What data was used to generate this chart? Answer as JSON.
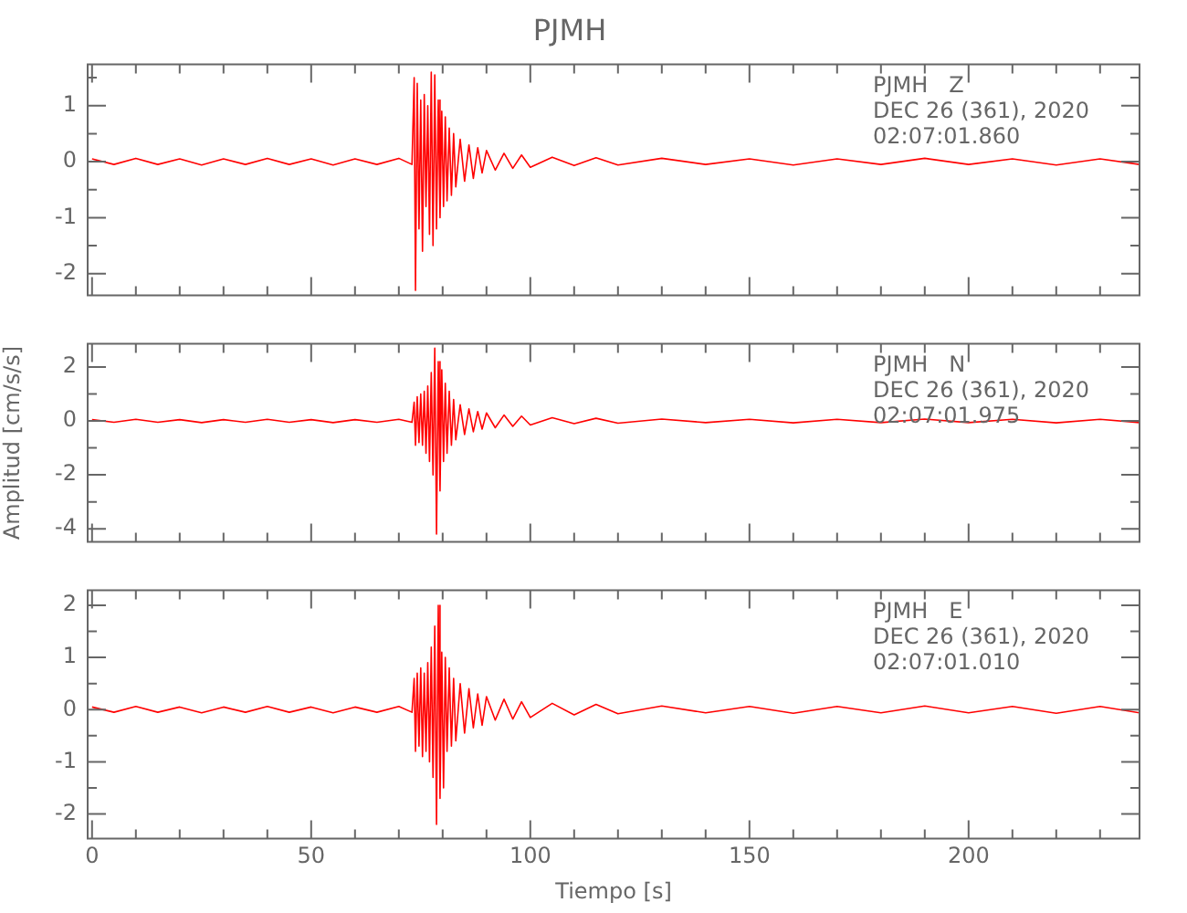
{
  "chart_data": [
    {
      "type": "line",
      "title": "PJMH",
      "tick_labels": "y",
      "annotations": [
        "PJMH   Z",
        "DEC 26 (361), 2020",
        "02:07:01.860"
      ],
      "x": [
        0,
        5,
        10,
        15,
        20,
        25,
        30,
        35,
        40,
        45,
        50,
        55,
        60,
        65,
        70,
        73,
        73.5,
        73.8,
        74.2,
        74.6,
        75,
        75.4,
        75.8,
        76.2,
        76.6,
        77,
        77.4,
        77.8,
        78.2,
        78.6,
        79,
        79.4,
        79.8,
        80.2,
        80.6,
        81,
        81.5,
        82,
        82.5,
        83,
        84,
        85,
        86,
        87,
        88,
        89,
        90,
        92,
        94,
        96,
        98,
        100,
        105,
        110,
        115,
        120,
        130,
        140,
        150,
        160,
        170,
        180,
        190,
        200,
        210,
        220,
        230,
        239
      ],
      "series": [
        {
          "color": "#ff0000",
          "values": [
            0.05,
            -0.05,
            0.06,
            -0.05,
            0.05,
            -0.06,
            0.05,
            -0.05,
            0.06,
            -0.05,
            0.05,
            -0.06,
            0.05,
            -0.05,
            0.06,
            -0.05,
            1.5,
            -2.3,
            1.4,
            -1.2,
            1.1,
            -1.6,
            1.2,
            -0.8,
            1.0,
            -1.3,
            1.6,
            -1.5,
            1.55,
            -1.2,
            1.1,
            -1.0,
            0.9,
            -0.8,
            0.8,
            -0.7,
            0.6,
            -0.6,
            0.5,
            -0.45,
            0.4,
            -0.35,
            0.3,
            -0.3,
            0.25,
            -0.2,
            0.2,
            -0.15,
            0.15,
            -0.12,
            0.12,
            -0.1,
            0.08,
            -0.07,
            0.07,
            -0.06,
            0.06,
            -0.05,
            0.05,
            -0.06,
            0.05,
            -0.05,
            0.06,
            -0.05,
            0.05,
            -0.06,
            0.05,
            -0.05
          ]
        }
      ],
      "xlim": [
        -1,
        239
      ],
      "xticks": [
        0,
        {
          "value": 10,
          "label": null
        },
        {
          "value": 20,
          "label": null
        },
        {
          "value": 30,
          "label": null
        },
        {
          "value": 40,
          "label": null
        },
        50,
        {
          "value": 60,
          "label": null
        },
        {
          "value": 70,
          "label": null
        },
        {
          "value": 80,
          "label": null
        },
        {
          "value": 90,
          "label": null
        },
        100,
        {
          "value": 110,
          "label": null
        },
        {
          "value": 120,
          "label": null
        },
        {
          "value": 130,
          "label": null
        },
        {
          "value": 140,
          "label": null
        },
        150,
        {
          "value": 160,
          "label": null
        },
        {
          "value": 170,
          "label": null
        },
        {
          "value": 180,
          "label": null
        },
        {
          "value": 190,
          "label": null
        },
        200,
        {
          "value": 210,
          "label": null
        },
        {
          "value": 220,
          "label": null
        },
        {
          "value": 230,
          "label": null
        }
      ],
      "ylim": [
        -2.39,
        1.74
      ],
      "yticks": [
        -2,
        {
          "value": -1.5,
          "label": null
        },
        -1,
        {
          "value": -0.5,
          "label": null
        },
        0,
        {
          "value": 0.5,
          "label": null
        },
        1,
        {
          "value": 1.5,
          "label": null
        }
      ]
    },
    {
      "type": "line",
      "ylabel": "Amplitud [cm/s/s]",
      "tick_labels": "y",
      "annotations": [
        "PJMH   N",
        "DEC 26 (361), 2020",
        "02:07:01.975"
      ],
      "x": [
        0,
        5,
        10,
        15,
        20,
        25,
        30,
        35,
        40,
        45,
        50,
        55,
        60,
        65,
        70,
        73,
        73.5,
        73.8,
        74.2,
        74.6,
        75,
        75.4,
        75.8,
        76.2,
        76.6,
        77,
        77.4,
        77.8,
        78.2,
        78.6,
        79,
        79.4,
        79.8,
        80.2,
        80.6,
        81,
        81.5,
        82,
        82.5,
        83,
        84,
        85,
        86,
        87,
        88,
        89,
        90,
        92,
        94,
        96,
        98,
        100,
        105,
        110,
        115,
        120,
        130,
        140,
        150,
        160,
        170,
        180,
        190,
        200,
        210,
        220,
        230,
        239
      ],
      "series": [
        {
          "color": "#ff0000",
          "values": [
            0.05,
            -0.05,
            0.06,
            -0.05,
            0.05,
            -0.06,
            0.05,
            -0.05,
            0.06,
            -0.05,
            0.05,
            -0.06,
            0.05,
            -0.05,
            0.06,
            -0.05,
            0.7,
            -0.9,
            0.9,
            -0.8,
            1.0,
            -0.9,
            1.1,
            -1.2,
            1.3,
            -1.5,
            1.8,
            -2.0,
            2.7,
            -4.2,
            2.2,
            -2.6,
            1.9,
            -1.5,
            1.4,
            -1.2,
            1.1,
            -0.9,
            0.8,
            -0.7,
            0.6,
            -0.5,
            0.45,
            -0.4,
            0.35,
            -0.3,
            0.3,
            -0.25,
            0.22,
            -0.2,
            0.18,
            -0.15,
            0.12,
            -0.1,
            0.1,
            -0.08,
            0.07,
            -0.06,
            0.06,
            -0.07,
            0.06,
            -0.06,
            0.07,
            -0.06,
            0.06,
            -0.07,
            0.06,
            -0.06
          ]
        }
      ],
      "xlim": [
        -1,
        239
      ],
      "xticks": [
        0,
        {
          "value": 10,
          "label": null
        },
        {
          "value": 20,
          "label": null
        },
        {
          "value": 30,
          "label": null
        },
        {
          "value": 40,
          "label": null
        },
        50,
        {
          "value": 60,
          "label": null
        },
        {
          "value": 70,
          "label": null
        },
        {
          "value": 80,
          "label": null
        },
        {
          "value": 90,
          "label": null
        },
        100,
        {
          "value": 110,
          "label": null
        },
        {
          "value": 120,
          "label": null
        },
        {
          "value": 130,
          "label": null
        },
        {
          "value": 140,
          "label": null
        },
        150,
        {
          "value": 160,
          "label": null
        },
        {
          "value": 170,
          "label": null
        },
        {
          "value": 180,
          "label": null
        },
        {
          "value": 190,
          "label": null
        },
        200,
        {
          "value": 210,
          "label": null
        },
        {
          "value": 220,
          "label": null
        },
        {
          "value": 230,
          "label": null
        }
      ],
      "ylim": [
        -4.49,
        2.87
      ],
      "yticks": [
        -4,
        {
          "value": -3,
          "label": null
        },
        -2,
        {
          "value": -1,
          "label": null
        },
        0,
        {
          "value": 1,
          "label": null
        },
        2
      ]
    },
    {
      "type": "line",
      "xlabel": "Tiempo [s]",
      "annotations": [
        "PJMH   E",
        "DEC 26 (361), 2020",
        "02:07:01.010"
      ],
      "x": [
        0,
        5,
        10,
        15,
        20,
        25,
        30,
        35,
        40,
        45,
        50,
        55,
        60,
        65,
        70,
        73,
        73.5,
        73.8,
        74.2,
        74.6,
        75,
        75.4,
        75.8,
        76.2,
        76.6,
        77,
        77.4,
        77.8,
        78.2,
        78.6,
        79,
        79.4,
        79.8,
        80.2,
        80.6,
        81,
        81.5,
        82,
        82.5,
        83,
        84,
        85,
        86,
        87,
        88,
        89,
        90,
        92,
        94,
        96,
        98,
        100,
        105,
        110,
        115,
        120,
        130,
        140,
        150,
        160,
        170,
        180,
        190,
        200,
        210,
        220,
        230,
        239
      ],
      "series": [
        {
          "color": "#ff0000",
          "values": [
            0.05,
            -0.05,
            0.06,
            -0.05,
            0.05,
            -0.06,
            0.05,
            -0.05,
            0.06,
            -0.05,
            0.05,
            -0.06,
            0.05,
            -0.05,
            0.06,
            -0.05,
            0.6,
            -0.8,
            0.7,
            -0.7,
            0.8,
            -0.9,
            0.7,
            -0.8,
            0.9,
            -1.0,
            1.2,
            -1.3,
            1.6,
            -2.2,
            2.0,
            -1.7,
            1.1,
            -1.5,
            1.0,
            -0.8,
            0.8,
            -0.7,
            0.6,
            -0.6,
            0.5,
            -0.45,
            0.4,
            -0.35,
            0.3,
            -0.3,
            0.25,
            -0.2,
            0.2,
            -0.18,
            0.15,
            -0.15,
            0.12,
            -0.1,
            0.1,
            -0.08,
            0.07,
            -0.06,
            0.06,
            -0.07,
            0.06,
            -0.06,
            0.07,
            -0.06,
            0.06,
            -0.07,
            0.06,
            -0.06
          ]
        }
      ],
      "xlim": [
        -1,
        239
      ],
      "xticks": [
        0,
        {
          "value": 10,
          "label": null
        },
        {
          "value": 20,
          "label": null
        },
        {
          "value": 30,
          "label": null
        },
        {
          "value": 40,
          "label": null
        },
        50,
        {
          "value": 60,
          "label": null
        },
        {
          "value": 70,
          "label": null
        },
        {
          "value": 80,
          "label": null
        },
        {
          "value": 90,
          "label": null
        },
        100,
        {
          "value": 110,
          "label": null
        },
        {
          "value": 120,
          "label": null
        },
        {
          "value": 130,
          "label": null
        },
        {
          "value": 140,
          "label": null
        },
        150,
        {
          "value": 160,
          "label": null
        },
        {
          "value": 170,
          "label": null
        },
        {
          "value": 180,
          "label": null
        },
        {
          "value": 190,
          "label": null
        },
        200,
        {
          "value": 210,
          "label": null
        },
        {
          "value": 220,
          "label": null
        },
        {
          "value": 230,
          "label": null
        }
      ],
      "ylim": [
        -2.47,
        2.29
      ],
      "yticks": [
        -2,
        {
          "value": -1.5,
          "label": null
        },
        -1,
        {
          "value": -0.5,
          "label": null
        },
        0,
        {
          "value": 0.5,
          "label": null
        },
        1,
        {
          "value": 1.5,
          "label": null
        },
        2
      ]
    }
  ]
}
